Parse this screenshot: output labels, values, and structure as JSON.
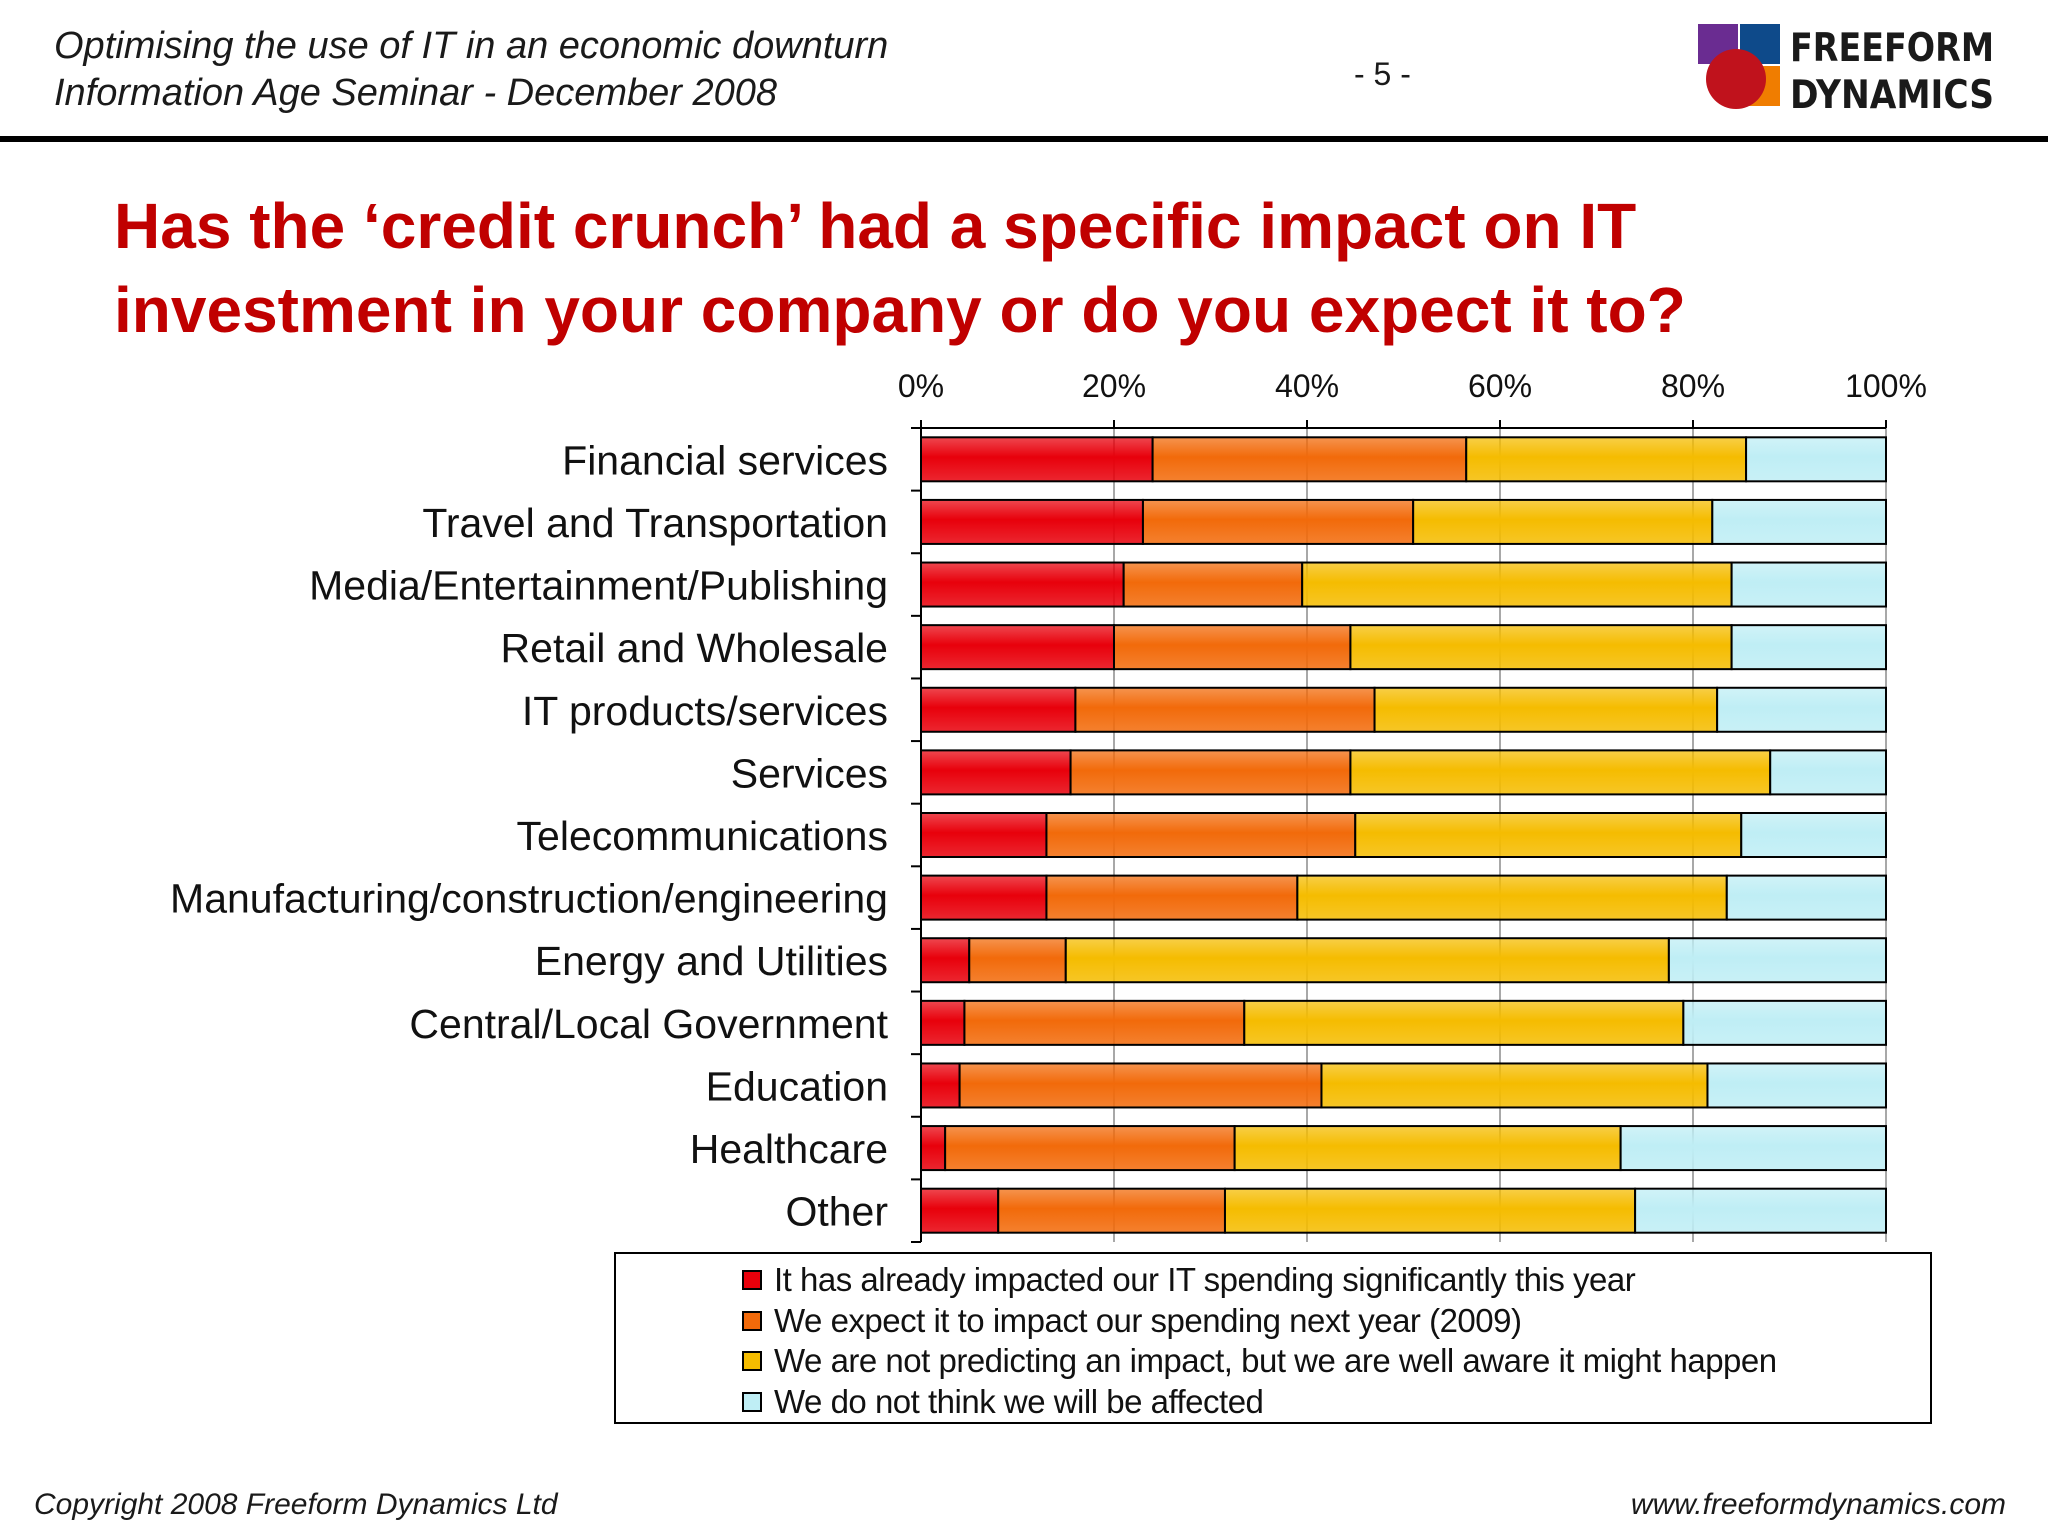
{
  "header": {
    "title": "Optimising the use of IT in an economic downturn",
    "subtitle": "Information Age Seminar - December 2008",
    "page_number": "- 5 -",
    "logo": {
      "line1": "FREEFORM",
      "line2": "DYNAMICS",
      "colors": [
        "#6a2c91",
        "#0e4a8a",
        "#c0121c",
        "#f07d00"
      ]
    }
  },
  "slide_title": {
    "line1": "Has the ‘credit crunch’ had a specific impact on IT",
    "line2": "investment in your company or do you expect it to?"
  },
  "chart_data": {
    "type": "bar",
    "orientation": "horizontal",
    "stacked": "percent",
    "xlim": [
      0,
      100
    ],
    "x_ticks": [
      "0%",
      "20%",
      "40%",
      "60%",
      "80%",
      "100%"
    ],
    "x_axis_position": "top",
    "grid": true,
    "legend_position": "bottom",
    "categories": [
      "Financial services",
      "Travel and Transportation",
      "Media/Entertainment/Publishing",
      "Retail and Wholesale",
      "IT products/services",
      "Services",
      "Telecommunications",
      "Manufacturing/construction/engineering",
      "Energy and Utilities",
      "Central/Local Government",
      "Education",
      "Healthcare",
      "Other"
    ],
    "series": [
      {
        "name": "It has already impacted our IT spending significantly this year",
        "color": "#e8000b",
        "values": [
          24,
          23,
          21,
          20,
          16,
          15.5,
          13,
          13,
          5,
          4.5,
          4,
          2.5,
          8
        ]
      },
      {
        "name": "We expect it to impact our spending next year (2009)",
        "color": "#f26a0a",
        "values": [
          32.5,
          28,
          18.5,
          24.5,
          31,
          29,
          32,
          26,
          10,
          29,
          37.5,
          30,
          23.5
        ]
      },
      {
        "name": "We are not predicting an impact, but we are well aware it might happen",
        "color": "#f5bc00",
        "values": [
          29,
          31,
          44.5,
          39.5,
          35.5,
          43.5,
          40,
          44.5,
          62.5,
          45.5,
          40,
          40,
          42.5
        ]
      },
      {
        "name": "We do not think we will be affected",
        "color": "#bfeef5",
        "values": [
          14.5,
          18,
          16,
          16,
          17.5,
          12,
          15,
          16.5,
          22.5,
          21,
          18.5,
          27.5,
          26
        ]
      }
    ]
  },
  "footer": {
    "copyright": "Copyright 2008 Freeform Dynamics Ltd",
    "url": "www.freeformdynamics.com"
  }
}
